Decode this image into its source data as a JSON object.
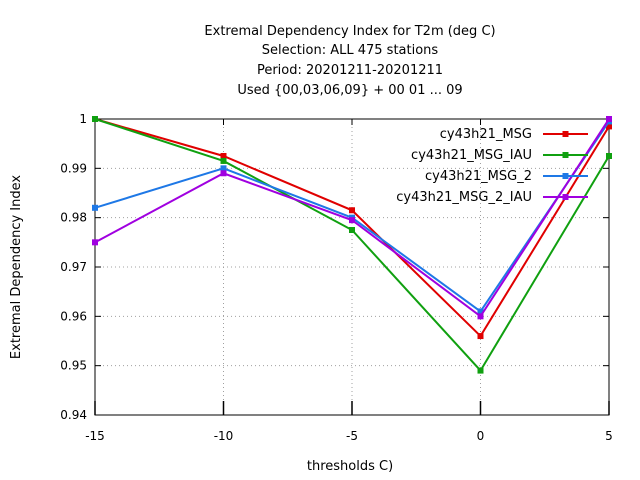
{
  "chart_data": {
    "type": "line",
    "title": [
      "Extremal Dependency Index  for T2m (deg C)",
      "Selection: ALL    475 stations",
      "Period: 20201211-20201211",
      "Used {00,03,06,09} + 00 01 ... 09"
    ],
    "xlabel": "thresholds C)",
    "ylabel": "Extremal Dependency Index",
    "x": [
      -15,
      -10,
      -5,
      0,
      5
    ],
    "xlim": [
      -15,
      5
    ],
    "ylim": [
      0.94,
      1.0
    ],
    "xticks": [
      -15,
      -10,
      -5,
      0,
      5
    ],
    "yticks": [
      0.94,
      0.95,
      0.96,
      0.97,
      0.98,
      0.99,
      1
    ],
    "grid": true,
    "legend_position": "top-right",
    "series": [
      {
        "name": "cy43h21_MSG",
        "color": "#e00000",
        "values": [
          1.0,
          0.9925,
          0.9815,
          0.956,
          0.9985
        ]
      },
      {
        "name": "cy43h21_MSG_IAU",
        "color": "#10a010",
        "values": [
          1.0,
          0.9915,
          0.9775,
          0.949,
          0.9925
        ]
      },
      {
        "name": "cy43h21_MSG_2",
        "color": "#1e78e6",
        "values": [
          0.982,
          0.99,
          0.98,
          0.961,
          0.9995
        ]
      },
      {
        "name": "cy43h21_MSG_2_IAU",
        "color": "#a000e0",
        "values": [
          0.975,
          0.989,
          0.9795,
          0.96,
          1.0
        ]
      }
    ]
  }
}
